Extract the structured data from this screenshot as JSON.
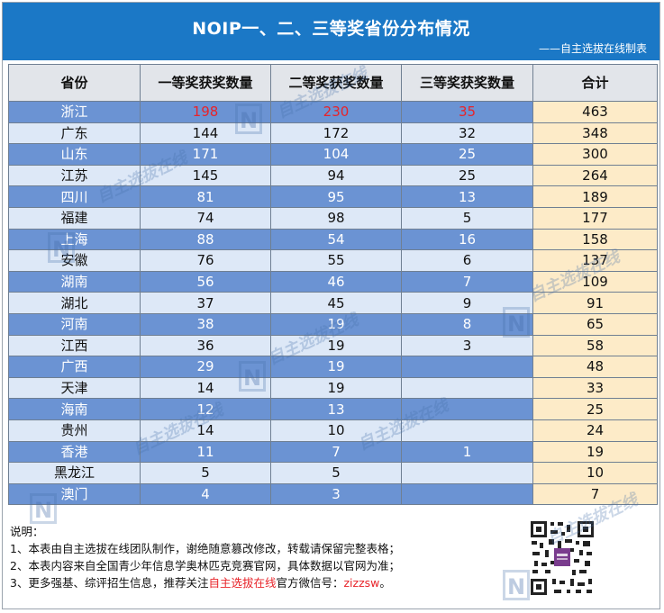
{
  "title": "NOIP一、二、三等奖省份分布情况",
  "subtitle": "——自主选拔在线制表",
  "columns": [
    "省份",
    "一等奖获奖数量",
    "二等奖获奖数量",
    "三等奖获奖数量",
    "合计"
  ],
  "rows": [
    {
      "province": "浙江",
      "first": "198",
      "second": "230",
      "third": "35",
      "total": "463"
    },
    {
      "province": "广东",
      "first": "144",
      "second": "172",
      "third": "32",
      "total": "348"
    },
    {
      "province": "山东",
      "first": "171",
      "second": "104",
      "third": "25",
      "total": "300"
    },
    {
      "province": "江苏",
      "first": "145",
      "second": "94",
      "third": "25",
      "total": "264"
    },
    {
      "province": "四川",
      "first": "81",
      "second": "95",
      "third": "13",
      "total": "189"
    },
    {
      "province": "福建",
      "first": "74",
      "second": "98",
      "third": "5",
      "total": "177"
    },
    {
      "province": "上海",
      "first": "88",
      "second": "54",
      "third": "16",
      "total": "158"
    },
    {
      "province": "安徽",
      "first": "76",
      "second": "55",
      "third": "6",
      "total": "137"
    },
    {
      "province": "湖南",
      "first": "56",
      "second": "46",
      "third": "7",
      "total": "109"
    },
    {
      "province": "湖北",
      "first": "37",
      "second": "45",
      "third": "9",
      "total": "91"
    },
    {
      "province": "河南",
      "first": "38",
      "second": "19",
      "third": "8",
      "total": "65"
    },
    {
      "province": "江西",
      "first": "36",
      "second": "19",
      "third": "3",
      "total": "58"
    },
    {
      "province": "广西",
      "first": "29",
      "second": "19",
      "third": "",
      "total": "48"
    },
    {
      "province": "天津",
      "first": "14",
      "second": "19",
      "third": "",
      "total": "33"
    },
    {
      "province": "海南",
      "first": "12",
      "second": "13",
      "third": "",
      "total": "25"
    },
    {
      "province": "贵州",
      "first": "14",
      "second": "10",
      "third": "",
      "total": "24"
    },
    {
      "province": "香港",
      "first": "11",
      "second": "7",
      "third": "1",
      "total": "19"
    },
    {
      "province": "黑龙江",
      "first": "5",
      "second": "5",
      "third": "",
      "total": "10"
    },
    {
      "province": "澳门",
      "first": "4",
      "second": "3",
      "third": "",
      "total": "7"
    }
  ],
  "notes": {
    "heading": "说明：",
    "line1": "1、本表由自主选拔在线团队制作，谢绝随意篡改修改，转载请保留完整表格；",
    "line2": "2、本表内容来自全国青少年信息学奥林匹克竞赛官网，具体数据以官网为准；",
    "line3_pre": "3、更多强基、综评招生信息，推荐关注",
    "line3_highlight": "自主选拔在线",
    "line3_mid": "官方微信号：",
    "line3_id": "zizzsw",
    "line3_end": "。"
  },
  "watermark": {
    "text": "自主选拔在线",
    "logo": "N"
  },
  "colors": {
    "header_blue": "#1b78c6",
    "row_dark": "#6b93d3",
    "row_light": "#dde8f7",
    "total_col": "#fdebc8",
    "highlight_red": "#e8242a"
  }
}
